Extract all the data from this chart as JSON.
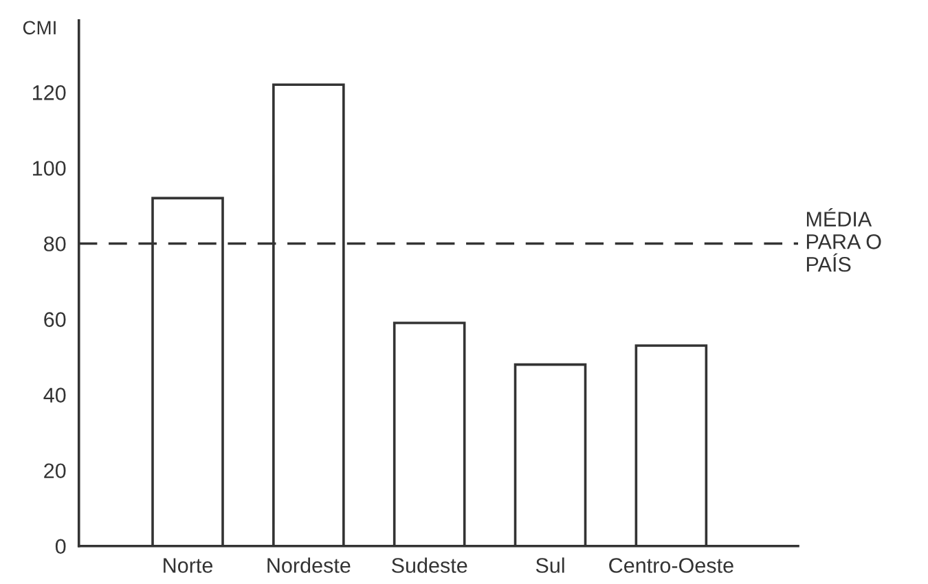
{
  "chart_data": {
    "type": "bar",
    "ylabel": "CMI",
    "categories": [
      "Norte",
      "Nordeste",
      "Sudeste",
      "Sul",
      "Centro-Oeste"
    ],
    "values": [
      92,
      122,
      59,
      48,
      53
    ],
    "color": "#ffffff",
    "ylim": [
      0,
      139
    ],
    "yticks": [
      0,
      20,
      40,
      60,
      80,
      100,
      120
    ],
    "grid": false,
    "ref_lines": [
      {
        "axis": "y",
        "value": 80,
        "label": "MÉDIA\nPARA O\nPAÍS",
        "color": "#333333",
        "line_style": "dashed"
      }
    ]
  }
}
